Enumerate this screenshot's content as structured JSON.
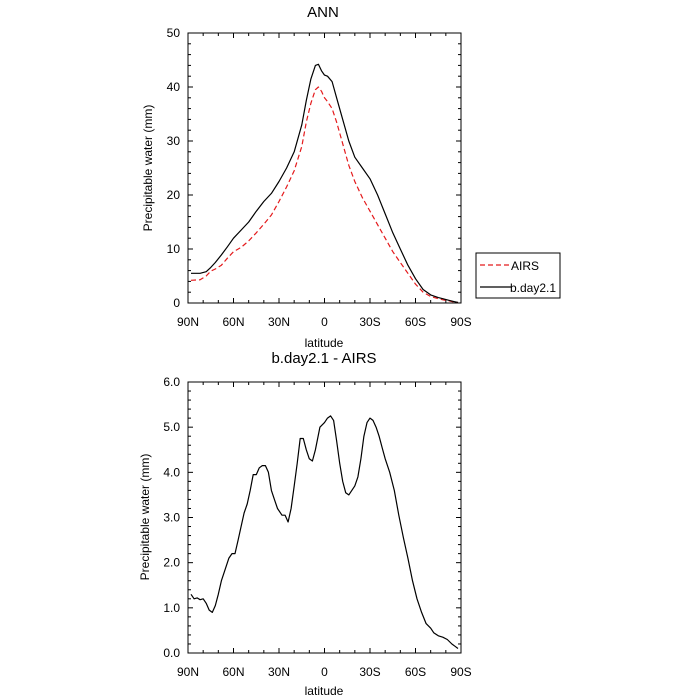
{
  "chart_data": [
    {
      "type": "line",
      "title": "ANN",
      "xlabel": "latitude",
      "ylabel": "Precipitable water (mm)",
      "xlim": [
        90,
        -90
      ],
      "ylim": [
        0,
        50
      ],
      "xticks": [
        90,
        60,
        30,
        0,
        -30,
        -60,
        -90
      ],
      "xtick_labels": [
        "90N",
        "60N",
        "30N",
        "0",
        "30S",
        "60S",
        "90S"
      ],
      "yticks": [
        0,
        10,
        20,
        30,
        40,
        50
      ],
      "ytick_labels": [
        "0",
        "10",
        "20",
        "30",
        "40",
        "50"
      ],
      "legend": {
        "position": "right",
        "entries": [
          {
            "name": "AIRS",
            "color": "#e41a1c",
            "dash": "dashed"
          },
          {
            "name": "b.day2.1",
            "color": "#000000",
            "dash": "solid"
          }
        ]
      },
      "series": [
        {
          "name": "AIRS",
          "color": "#e41a1c",
          "dash": "dashed",
          "x": [
            88,
            82,
            78,
            75,
            72,
            68,
            64,
            60,
            55,
            50,
            45,
            40,
            35,
            30,
            25,
            20,
            15,
            12,
            9,
            6,
            4,
            2,
            0,
            -2,
            -5,
            -8,
            -12,
            -16,
            -20,
            -25,
            -30,
            -35,
            -40,
            -45,
            -50,
            -55,
            -60,
            -65,
            -70,
            -75,
            -78,
            -82,
            -85,
            -88
          ],
          "y": [
            4.2,
            4.3,
            5.0,
            5.9,
            6.3,
            7.0,
            8.3,
            9.5,
            10.3,
            11.5,
            13.0,
            14.6,
            16.3,
            18.8,
            21.5,
            24.5,
            29.0,
            33.5,
            37.0,
            39.5,
            40.0,
            39.2,
            38.0,
            37.3,
            36.0,
            33.5,
            29.5,
            25.5,
            22.5,
            19.5,
            17.0,
            14.5,
            12.0,
            9.5,
            7.5,
            5.5,
            3.5,
            2.0,
            1.2,
            0.8,
            0.6,
            0.4,
            0.2,
            0.1
          ]
        },
        {
          "name": "b.day2.1",
          "color": "#000000",
          "dash": "solid",
          "x": [
            88,
            82,
            78,
            75,
            72,
            68,
            64,
            60,
            55,
            50,
            45,
            40,
            35,
            30,
            25,
            20,
            15,
            12,
            9,
            6,
            4,
            2,
            0,
            -2,
            -5,
            -8,
            -12,
            -16,
            -20,
            -25,
            -30,
            -35,
            -40,
            -45,
            -50,
            -55,
            -60,
            -65,
            -70,
            -75,
            -78,
            -82,
            -85,
            -88
          ],
          "y": [
            5.5,
            5.5,
            5.8,
            6.6,
            7.5,
            8.9,
            10.4,
            12.0,
            13.5,
            15.0,
            17.0,
            18.8,
            20.3,
            22.5,
            25.0,
            28.0,
            33.0,
            37.5,
            41.5,
            44.0,
            44.2,
            43.0,
            42.2,
            42.0,
            41.0,
            38.0,
            34.0,
            30.0,
            27.0,
            25.0,
            23.0,
            20.0,
            16.5,
            13.0,
            10.0,
            7.0,
            4.5,
            2.5,
            1.5,
            1.0,
            0.8,
            0.5,
            0.3,
            0.1
          ]
        }
      ]
    },
    {
      "type": "line",
      "title": "b.day2.1 - AIRS",
      "xlabel": "latitude",
      "ylabel": "Precipitable water (mm)",
      "xlim": [
        90,
        -90
      ],
      "ylim": [
        0,
        6
      ],
      "xticks": [
        90,
        60,
        30,
        0,
        -30,
        -60,
        -90
      ],
      "xtick_labels": [
        "90N",
        "60N",
        "30N",
        "0",
        "30S",
        "60S",
        "90S"
      ],
      "yticks": [
        0,
        1,
        2,
        3,
        4,
        5,
        6
      ],
      "ytick_labels": [
        "0.0",
        "1.0",
        "2.0",
        "3.0",
        "4.0",
        "5.0",
        "6.0"
      ],
      "series": [
        {
          "name": "b.day2.1 - AIRS",
          "color": "#000000",
          "dash": "solid",
          "x": [
            88,
            86,
            84,
            82,
            80,
            78,
            76,
            74,
            72,
            70,
            68,
            66,
            63,
            61,
            59,
            57,
            55,
            53,
            51,
            49,
            47,
            45,
            43,
            41,
            39,
            37,
            35,
            33,
            31,
            28,
            26,
            24,
            22,
            20,
            18,
            16,
            14,
            12,
            10,
            8,
            6,
            3,
            0,
            -2,
            -4,
            -6,
            -8,
            -10,
            -12,
            -14,
            -16,
            -18,
            -20,
            -22,
            -24,
            -26,
            -28,
            -30,
            -32,
            -34,
            -36,
            -38,
            -40,
            -43,
            -46,
            -49,
            -52,
            -55,
            -58,
            -61,
            -64,
            -67,
            -70,
            -72,
            -75,
            -78,
            -81,
            -84,
            -86,
            -88
          ],
          "y": [
            1.3,
            1.2,
            1.22,
            1.18,
            1.2,
            1.1,
            0.95,
            0.9,
            1.05,
            1.3,
            1.6,
            1.8,
            2.1,
            2.2,
            2.2,
            2.5,
            2.8,
            3.1,
            3.3,
            3.6,
            3.95,
            3.95,
            4.1,
            4.15,
            4.15,
            4.0,
            3.6,
            3.4,
            3.2,
            3.05,
            3.05,
            2.9,
            3.2,
            3.7,
            4.2,
            4.75,
            4.75,
            4.5,
            4.3,
            4.25,
            4.5,
            5.0,
            5.1,
            5.2,
            5.25,
            5.15,
            4.7,
            4.2,
            3.8,
            3.55,
            3.5,
            3.6,
            3.7,
            3.9,
            4.3,
            4.8,
            5.1,
            5.2,
            5.15,
            5.0,
            4.8,
            4.55,
            4.3,
            4.0,
            3.6,
            3.05,
            2.55,
            2.1,
            1.6,
            1.2,
            0.9,
            0.65,
            0.55,
            0.45,
            0.38,
            0.35,
            0.3,
            0.2,
            0.15,
            0.1
          ]
        }
      ]
    }
  ]
}
